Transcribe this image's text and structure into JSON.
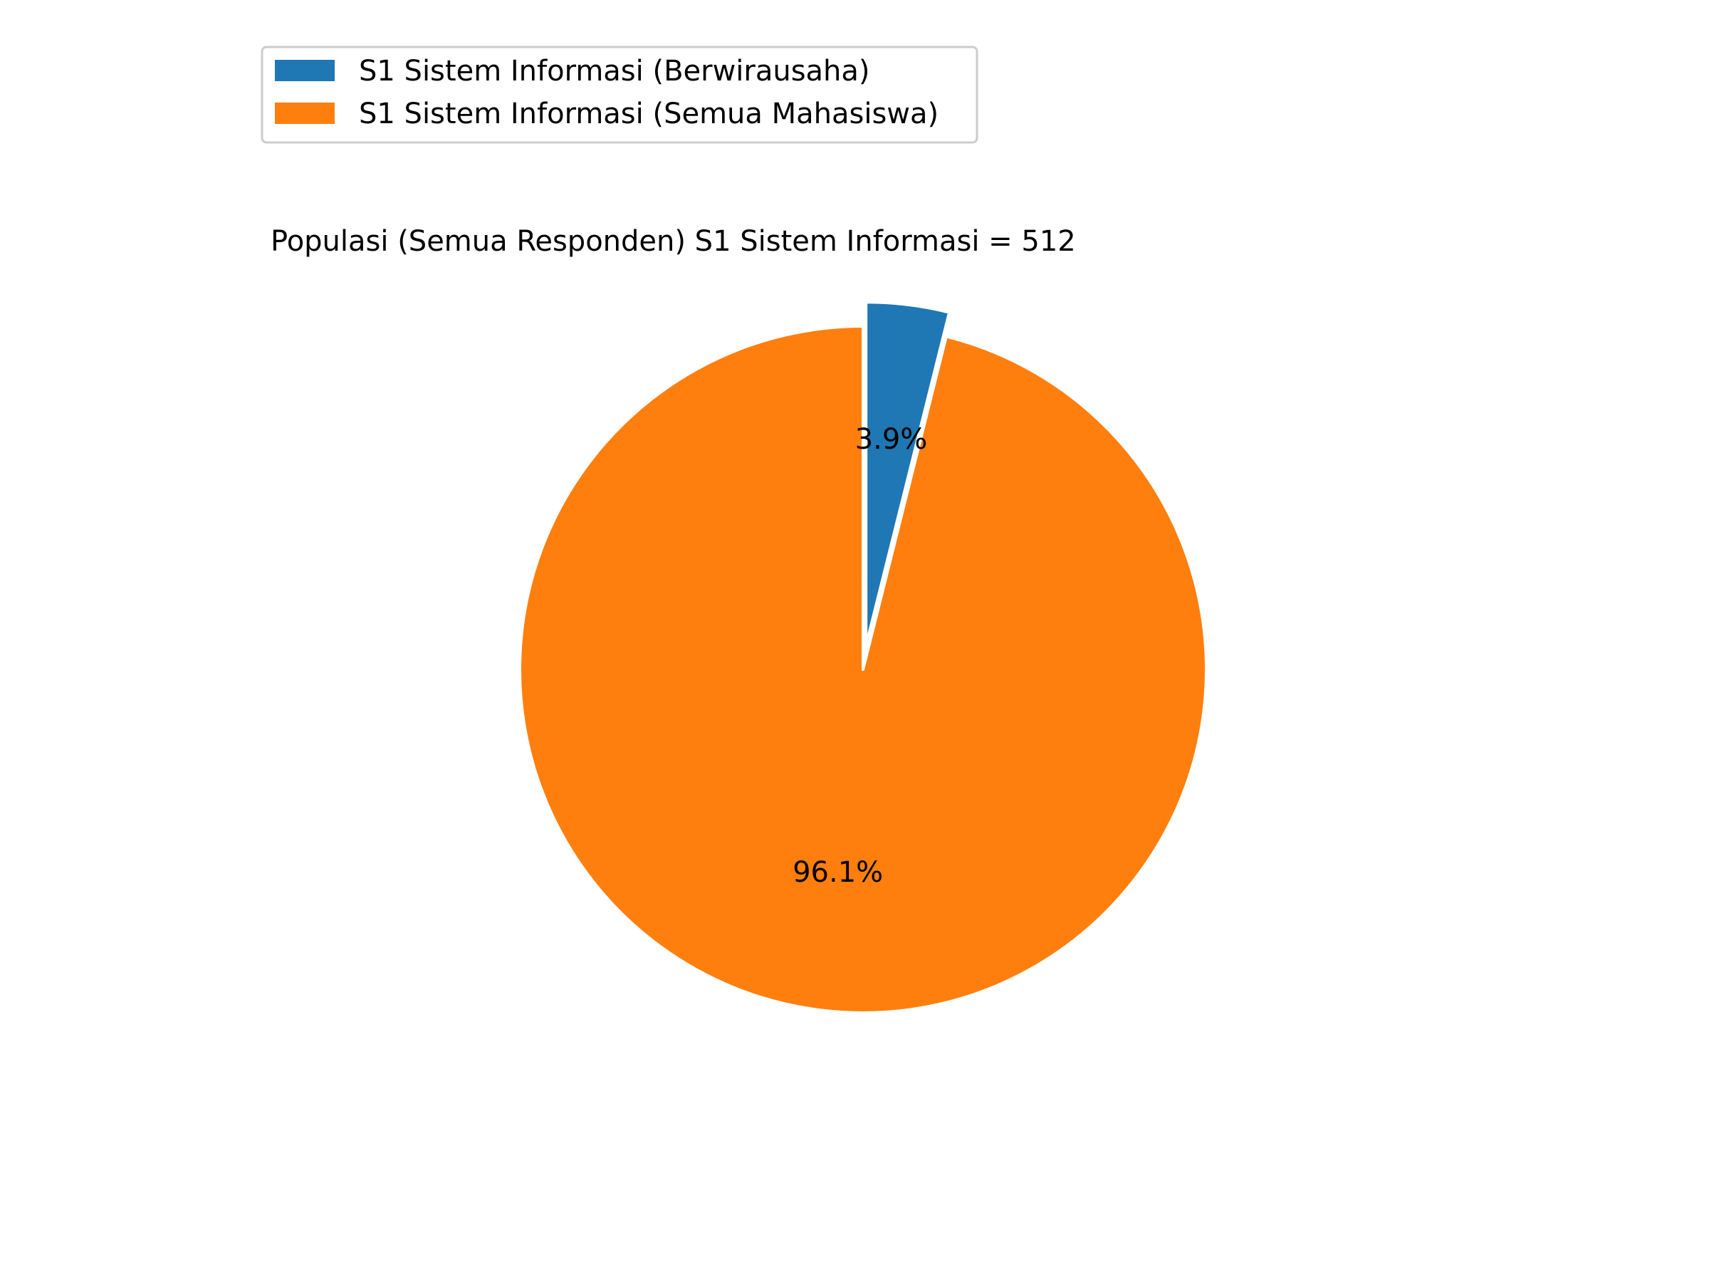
{
  "chart_data": {
    "type": "pie",
    "title": "Populasi (Semua Responden) S1 Sistem Informasi = 512",
    "legend_placement": "top-left",
    "start_angle_deg": 90,
    "direction": "clockwise",
    "slices": [
      {
        "label": "S1 Sistem Informasi (Berwirausaha)",
        "value": 3.9,
        "pct_label": "3.9%",
        "color": "#1f77b4",
        "exploded": true
      },
      {
        "label": "S1 Sistem Informasi (Semua Mahasiswa)",
        "value": 96.1,
        "pct_label": "96.1%",
        "color": "#ff7f0e",
        "exploded": false
      }
    ]
  }
}
